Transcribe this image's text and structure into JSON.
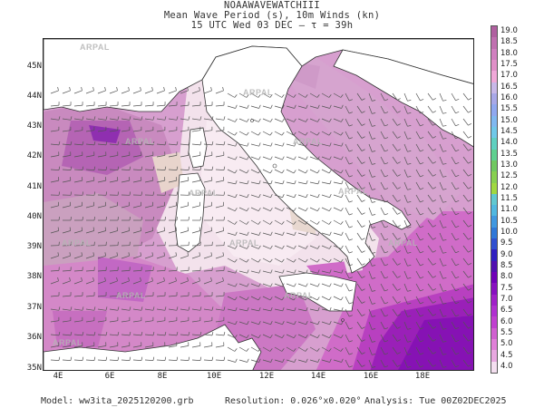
{
  "header": {
    "line1": "NOAAWAVEWATCHIII",
    "line2": "Mean Wave Period (s), 10m Winds (kn)",
    "line3": "15 UTC Wed 03 DEC  –  τ = 39h"
  },
  "axes": {
    "y_labels": [
      "45N",
      "44N",
      "43N",
      "42N",
      "41N",
      "40N",
      "39N",
      "38N",
      "37N",
      "36N",
      "35N"
    ],
    "x_labels": [
      "4E",
      "6E",
      "8E",
      "10E",
      "12E",
      "14E",
      "16E",
      "18E"
    ]
  },
  "colorbar": {
    "labels": [
      "19.0",
      "18.5",
      "18.0",
      "17.5",
      "17.0",
      "16.5",
      "16.0",
      "15.5",
      "15.0",
      "14.5",
      "14.0",
      "13.5",
      "13.0",
      "12.5",
      "12.0",
      "11.5",
      "11.0",
      "10.5",
      "10.0",
      "9.5",
      "9.0",
      "8.5",
      "8.0",
      "7.5",
      "7.0",
      "6.5",
      "6.0",
      "5.5",
      "5.0",
      "4.5",
      "4.0"
    ],
    "colors": [
      "#b060a0",
      "#c070b0",
      "#d080c0",
      "#e090c8",
      "#f0a8d8",
      "#c8b8e8",
      "#a8a8e8",
      "#90a8f0",
      "#80b8f0",
      "#70c8e8",
      "#60d0c0",
      "#60d090",
      "#70c860",
      "#88d050",
      "#a0d840",
      "#60c8d0",
      "#50b8e0",
      "#4098e0",
      "#3078d8",
      "#3050d0",
      "#3020c0",
      "#5010b0",
      "#7000b8",
      "#8810c0",
      "#a020c8",
      "#b030d0",
      "#c040d0",
      "#d060d0",
      "#e080d8",
      "#e8a8e0",
      "#f4dff0"
    ]
  },
  "chart_data": {
    "type": "heatmap",
    "title": "Mean Wave Period (s), 10m Winds (kn)",
    "subtitle": "15 UTC Wed 03 DEC – τ = 39h",
    "colorbar_range": [
      4.0,
      19.0
    ],
    "colorbar_step": 0.5,
    "lon_range": [
      3.5,
      19.8
    ],
    "lat_range": [
      35.0,
      45.8
    ],
    "grid": false
  },
  "watermark": "ARPAL",
  "footer": {
    "model": "Model: ww3ita_2025120200.grb",
    "resolution": "Resolution: 0.026°x0.020°",
    "analysis": "Analysis: Tue 00Z02DEC2025"
  }
}
